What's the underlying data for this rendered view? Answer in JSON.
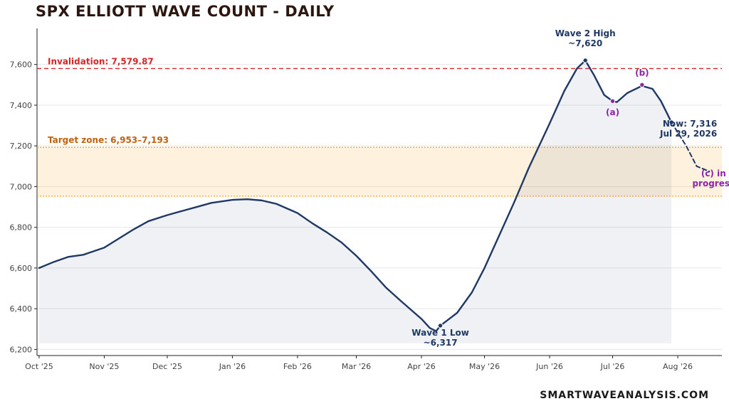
{
  "page": {
    "title": "SPX ELLIOTT WAVE COUNT - DAILY",
    "brand": "SMARTWAVEANALYSIS.COM"
  },
  "chart_data": {
    "type": "line",
    "title": "SPX ELLIOTT WAVE COUNT - DAILY",
    "xlabel": "",
    "ylabel": "",
    "xlim": [
      "2025-09-30",
      "2026-08-22"
    ],
    "ylim": [
      6170,
      7770
    ],
    "grid": true,
    "x_ticks": [
      {
        "date": "2025-10-01",
        "label": "Oct '25"
      },
      {
        "date": "2025-11-01",
        "label": "Nov '25"
      },
      {
        "date": "2025-12-01",
        "label": "Dec '25"
      },
      {
        "date": "2026-01-01",
        "label": "Jan '26"
      },
      {
        "date": "2026-02-01",
        "label": "Feb '26"
      },
      {
        "date": "2026-03-01",
        "label": "Mar '26"
      },
      {
        "date": "2026-04-01",
        "label": "Apr '26"
      },
      {
        "date": "2026-05-01",
        "label": "May '26"
      },
      {
        "date": "2026-06-01",
        "label": "Jun '26"
      },
      {
        "date": "2026-07-01",
        "label": "Jul '26"
      },
      {
        "date": "2026-08-01",
        "label": "Aug '26"
      }
    ],
    "y_ticks": [
      {
        "value": 6200,
        "label": "6,200"
      },
      {
        "value": 6400,
        "label": "6,400"
      },
      {
        "value": 6600,
        "label": "6,600"
      },
      {
        "value": 6800,
        "label": "6,800"
      },
      {
        "value": 7000,
        "label": "7,000"
      },
      {
        "value": 7200,
        "label": "7,200"
      },
      {
        "value": 7400,
        "label": "7,400"
      },
      {
        "value": 7600,
        "label": "7,600"
      }
    ],
    "series": [
      {
        "color": "#1f3864",
        "points": [
          [
            "2025-10-01",
            6600
          ],
          [
            "2025-10-08",
            6630
          ],
          [
            "2025-10-15",
            6655
          ],
          [
            "2025-10-22",
            6665
          ],
          [
            "2025-11-01",
            6700
          ],
          [
            "2025-11-08",
            6745
          ],
          [
            "2025-11-15",
            6790
          ],
          [
            "2025-11-22",
            6830
          ],
          [
            "2025-12-01",
            6860
          ],
          [
            "2025-12-08",
            6880
          ],
          [
            "2025-12-15",
            6900
          ],
          [
            "2025-12-22",
            6920
          ],
          [
            "2026-01-01",
            6935
          ],
          [
            "2026-01-08",
            6938
          ],
          [
            "2026-01-15",
            6932
          ],
          [
            "2026-01-22",
            6915
          ],
          [
            "2026-02-01",
            6870
          ],
          [
            "2026-02-08",
            6820
          ],
          [
            "2026-02-15",
            6775
          ],
          [
            "2026-02-22",
            6725
          ],
          [
            "2026-03-01",
            6660
          ],
          [
            "2026-03-08",
            6585
          ],
          [
            "2026-03-15",
            6505
          ],
          [
            "2026-03-22",
            6440
          ],
          [
            "2026-04-01",
            6350
          ],
          [
            "2026-04-05",
            6305
          ],
          [
            "2026-04-08",
            6290
          ],
          [
            "2026-04-10",
            6317
          ],
          [
            "2026-04-18",
            6380
          ],
          [
            "2026-04-25",
            6480
          ],
          [
            "2026-05-01",
            6600
          ],
          [
            "2026-05-08",
            6760
          ],
          [
            "2026-05-15",
            6920
          ],
          [
            "2026-05-22",
            7090
          ],
          [
            "2026-06-01",
            7310
          ],
          [
            "2026-06-08",
            7470
          ],
          [
            "2026-06-14",
            7580
          ],
          [
            "2026-06-18",
            7620
          ],
          [
            "2026-06-22",
            7550
          ],
          [
            "2026-06-27",
            7450
          ],
          [
            "2026-07-01",
            7420
          ],
          [
            "2026-07-03",
            7415
          ],
          [
            "2026-07-08",
            7460
          ],
          [
            "2026-07-15",
            7495
          ],
          [
            "2026-07-20",
            7480
          ],
          [
            "2026-07-24",
            7420
          ],
          [
            "2026-07-29",
            7316
          ]
        ]
      },
      {
        "color": "#1f3864",
        "dashed": true,
        "points": [
          [
            "2026-07-29",
            7316
          ],
          [
            "2026-08-05",
            7200
          ],
          [
            "2026-08-10",
            7100
          ],
          [
            "2026-08-16",
            7075
          ]
        ]
      }
    ],
    "horizontal_lines": [
      {
        "value": 7579.87,
        "label": "Invalidation: 7,579.87",
        "color": "#d62728"
      }
    ],
    "bands": [
      {
        "from": 6953,
        "to": 7193,
        "label": "Target zone: 6,953–7,193",
        "color": "#f5a623",
        "label_color": "#c0620c"
      }
    ],
    "annotations": [
      {
        "date": "2026-06-18",
        "value": 7620,
        "label_lines": [
          "Wave 2 High",
          "~7,620"
        ],
        "color": "#1f3864",
        "marker": true
      },
      {
        "date": "2026-04-10",
        "value": 6317,
        "label_lines": [
          "Wave 1 Low",
          "~6,317"
        ],
        "color": "#1f3864",
        "marker": true
      },
      {
        "date": "2026-07-01",
        "value": 7420,
        "label_lines": [
          "(a)"
        ],
        "color": "#8e24aa",
        "marker": true
      },
      {
        "date": "2026-07-15",
        "value": 7500,
        "label_lines": [
          "(b)"
        ],
        "color": "#8e24aa",
        "marker": true
      },
      {
        "date": "2026-07-29",
        "value": 7316,
        "label_lines": [
          "Now: 7,316",
          "Jul 29, 2026"
        ],
        "color": "#1f3864",
        "marker": true
      },
      {
        "date": "2026-08-16",
        "value": 7075,
        "label_lines": [
          "(c) in",
          "progress"
        ],
        "color": "#8e24aa",
        "marker": false
      }
    ]
  }
}
